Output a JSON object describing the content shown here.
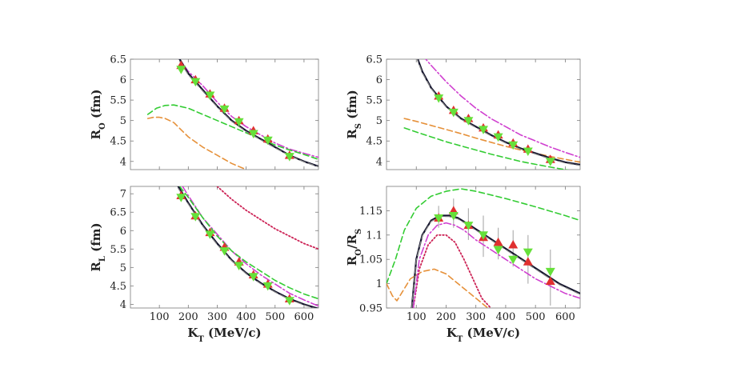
{
  "chart_data": [
    {
      "type": "line",
      "id": "ro",
      "title": "",
      "ylabel": "R",
      "ylabel_sub": "O",
      "ylabel_unit": " (fm)",
      "xlabel": "",
      "xlim": [
        0,
        650
      ],
      "ylim": [
        3.8,
        6.5
      ],
      "yticks": [
        "4",
        "4.5",
        "5",
        "5.5",
        "6",
        "6.5"
      ],
      "xticks": [],
      "series": [
        {
          "name": "dash-dot magenta",
          "color": "#d040d0",
          "style": "dashdot",
          "width": 1.6,
          "x": [
            160,
            200,
            250,
            300,
            350,
            400,
            450,
            500,
            550,
            600,
            650
          ],
          "y": [
            6.6,
            6.2,
            5.85,
            5.45,
            5.1,
            4.85,
            4.65,
            4.45,
            4.3,
            4.2,
            4.1
          ]
        },
        {
          "name": "dashed green",
          "color": "#33cc33",
          "style": "dashed",
          "width": 1.6,
          "x": [
            60,
            90,
            120,
            150,
            200,
            250,
            300,
            350,
            400,
            450,
            500,
            550,
            600,
            650
          ],
          "y": [
            5.15,
            5.3,
            5.37,
            5.38,
            5.3,
            5.15,
            5.0,
            4.85,
            4.7,
            4.55,
            4.4,
            4.28,
            4.17,
            4.05
          ]
        },
        {
          "name": "dashed orange",
          "color": "#e6913a",
          "style": "dashed",
          "width": 1.6,
          "x": [
            60,
            80,
            100,
            120,
            150,
            200,
            250,
            300,
            350,
            400
          ],
          "y": [
            5.05,
            5.08,
            5.08,
            5.05,
            4.95,
            4.6,
            4.35,
            4.15,
            3.95,
            3.8
          ]
        },
        {
          "name": "solid black",
          "color": "#15152e",
          "style": "solid",
          "width": 2.2,
          "x": [
            170,
            200,
            250,
            300,
            350,
            400,
            450,
            500,
            550,
            600,
            650
          ],
          "y": [
            6.5,
            6.15,
            5.75,
            5.35,
            5.0,
            4.75,
            4.55,
            4.35,
            4.15,
            4.0,
            3.88
          ]
        },
        {
          "name": "dashed gray",
          "color": "#888888",
          "style": "dashed",
          "width": 1.2,
          "x": [
            170,
            200,
            250,
            300,
            350,
            400,
            450,
            500,
            550,
            600,
            650
          ],
          "y": [
            6.45,
            6.12,
            5.72,
            5.33,
            4.98,
            4.73,
            4.53,
            4.33,
            4.14,
            3.99,
            3.87
          ]
        }
      ],
      "markers": [
        {
          "name": "red triangles",
          "color": "#e03030",
          "shape": "triangle-up",
          "x": [
            175,
            225,
            275,
            325,
            375,
            425,
            475,
            550
          ],
          "y": [
            6.35,
            6.0,
            5.65,
            5.3,
            5.0,
            4.75,
            4.55,
            4.15
          ]
        },
        {
          "name": "green triangles",
          "color": "#66e03a",
          "shape": "triangle-down",
          "x": [
            175,
            225,
            275,
            325,
            375,
            425,
            475,
            550
          ],
          "y": [
            6.25,
            5.95,
            5.62,
            5.28,
            4.97,
            4.68,
            4.52,
            4.12
          ]
        }
      ]
    },
    {
      "type": "line",
      "id": "rs",
      "title": "",
      "ylabel": "R",
      "ylabel_sub": "S",
      "ylabel_unit": " (fm)",
      "xlabel": "",
      "xlim": [
        0,
        650
      ],
      "ylim": [
        3.8,
        6.5
      ],
      "yticks": [
        "4",
        "4.5",
        "5",
        "5.5",
        "6",
        "6.5"
      ],
      "xticks": [],
      "series": [
        {
          "name": "dash-dot magenta",
          "color": "#d040d0",
          "style": "dashdot",
          "width": 1.6,
          "x": [
            120,
            150,
            200,
            250,
            300,
            350,
            400,
            450,
            500,
            550,
            600,
            650
          ],
          "y": [
            6.6,
            6.35,
            5.95,
            5.6,
            5.3,
            5.05,
            4.85,
            4.65,
            4.5,
            4.35,
            4.22,
            4.1
          ]
        },
        {
          "name": "dashed orange",
          "color": "#e6913a",
          "style": "dashed",
          "width": 1.6,
          "x": [
            60,
            100,
            150,
            200,
            250,
            300,
            350,
            400,
            450,
            500,
            550,
            600,
            650
          ],
          "y": [
            5.05,
            4.98,
            4.88,
            4.78,
            4.68,
            4.57,
            4.47,
            4.37,
            4.28,
            4.2,
            4.12,
            4.05,
            3.98
          ]
        },
        {
          "name": "dashed green",
          "color": "#33cc33",
          "style": "dashed",
          "width": 1.6,
          "x": [
            60,
            100,
            150,
            200,
            250,
            300,
            350,
            400,
            450,
            500,
            550,
            600,
            650
          ],
          "y": [
            4.82,
            4.72,
            4.6,
            4.48,
            4.38,
            4.28,
            4.18,
            4.09,
            4.0,
            3.93,
            3.86,
            3.8,
            3.74
          ]
        },
        {
          "name": "solid black",
          "color": "#15152e",
          "style": "solid",
          "width": 2.2,
          "x": [
            100,
            120,
            150,
            200,
            250,
            300,
            350,
            400,
            450,
            500,
            550,
            600,
            650
          ],
          "y": [
            6.6,
            6.2,
            5.8,
            5.35,
            5.05,
            4.85,
            4.65,
            4.47,
            4.32,
            4.2,
            4.08,
            3.98,
            3.92
          ]
        },
        {
          "name": "dashed gray",
          "color": "#888888",
          "style": "dashed",
          "width": 1.2,
          "x": [
            100,
            120,
            150,
            200,
            250,
            300,
            350,
            400,
            450,
            500,
            550,
            600,
            650
          ],
          "y": [
            6.55,
            6.17,
            5.78,
            5.33,
            5.03,
            4.83,
            4.63,
            4.45,
            4.3,
            4.18,
            4.06,
            3.96,
            3.9
          ]
        }
      ],
      "markers": [
        {
          "name": "red triangles",
          "color": "#e03030",
          "shape": "triangle-up",
          "x": [
            175,
            225,
            275,
            325,
            375,
            425,
            475,
            550
          ],
          "y": [
            5.6,
            5.25,
            5.05,
            4.82,
            4.65,
            4.45,
            4.3,
            4.05
          ]
        },
        {
          "name": "green triangles",
          "color": "#66e03a",
          "shape": "triangle-down",
          "x": [
            175,
            225,
            275,
            325,
            375,
            425,
            475,
            550
          ],
          "y": [
            5.55,
            5.2,
            5.0,
            4.78,
            4.6,
            4.4,
            4.25,
            4.0
          ]
        }
      ]
    },
    {
      "type": "line",
      "id": "rl",
      "title": "",
      "ylabel": "R",
      "ylabel_sub": "L",
      "ylabel_unit": " (fm)",
      "xlabel": "K",
      "xlabel_sub": "T",
      "xlabel_unit": " (MeV/c)",
      "xlim": [
        0,
        650
      ],
      "ylim": [
        3.9,
        7.2
      ],
      "yticks": [
        "4",
        "4.5",
        "5",
        "5.5",
        "6",
        "6.5",
        "7"
      ],
      "xticks": [
        "100",
        "200",
        "300",
        "400",
        "500",
        "600"
      ],
      "series": [
        {
          "name": "dotted crimson",
          "color": "#cc2255",
          "style": "dotted",
          "width": 1.8,
          "x": [
            300,
            350,
            400,
            450,
            500,
            550,
            600,
            650
          ],
          "y": [
            7.2,
            6.85,
            6.55,
            6.3,
            6.05,
            5.85,
            5.65,
            5.5
          ]
        },
        {
          "name": "dash-dot magenta",
          "color": "#d040d0",
          "style": "dashdot",
          "width": 1.6,
          "x": [
            180,
            200,
            250,
            300,
            350,
            400,
            450,
            500,
            550,
            600,
            650
          ],
          "y": [
            7.2,
            6.95,
            6.35,
            5.9,
            5.45,
            5.1,
            4.8,
            4.55,
            4.3,
            4.12,
            3.95
          ]
        },
        {
          "name": "dashed green",
          "color": "#33cc33",
          "style": "dashed",
          "width": 1.6,
          "x": [
            170,
            200,
            250,
            300,
            350,
            400,
            450,
            500,
            550,
            600,
            650
          ],
          "y": [
            7.2,
            6.9,
            6.35,
            5.85,
            5.45,
            5.15,
            4.9,
            4.65,
            4.45,
            4.28,
            4.15
          ]
        },
        {
          "name": "solid black",
          "color": "#15152e",
          "style": "solid",
          "width": 2.2,
          "x": [
            165,
            200,
            250,
            300,
            350,
            400,
            450,
            500,
            550,
            600,
            650
          ],
          "y": [
            7.2,
            6.75,
            6.15,
            5.65,
            5.2,
            4.85,
            4.58,
            4.35,
            4.15,
            4.0,
            3.88
          ]
        },
        {
          "name": "dashed gray",
          "color": "#888888",
          "style": "dashed",
          "width": 1.2,
          "x": [
            165,
            200,
            250,
            300,
            350,
            400,
            450,
            500,
            550,
            600,
            650
          ],
          "y": [
            7.15,
            6.72,
            6.12,
            5.62,
            5.18,
            4.83,
            4.56,
            4.33,
            4.13,
            3.98,
            3.86
          ]
        }
      ],
      "markers": [
        {
          "name": "red triangles",
          "color": "#e03030",
          "shape": "triangle-up",
          "x": [
            175,
            225,
            275,
            325,
            375,
            425,
            475,
            550
          ],
          "y": [
            6.95,
            6.4,
            5.95,
            5.55,
            5.15,
            4.8,
            4.55,
            4.15
          ]
        },
        {
          "name": "green triangles",
          "color": "#66e03a",
          "shape": "triangle-down",
          "x": [
            175,
            225,
            275,
            325,
            375,
            425,
            475,
            550
          ],
          "y": [
            6.9,
            6.38,
            5.9,
            5.45,
            5.05,
            4.75,
            4.5,
            4.1
          ]
        }
      ]
    },
    {
      "type": "line",
      "id": "ratio",
      "title": "",
      "ylabel": "R",
      "ylabel_sub": "O",
      "ylabel_mid": "/R",
      "ylabel_sub2": "S",
      "xlabel": "K",
      "xlabel_sub": "T",
      "xlabel_unit": " (MeV/c)",
      "xlim": [
        0,
        650
      ],
      "ylim": [
        0.95,
        1.2
      ],
      "yticks": [
        "0.95",
        "1",
        "1.05",
        "1.1",
        "1.15"
      ],
      "xticks": [
        "100",
        "200",
        "300",
        "400",
        "500",
        "600"
      ],
      "series": [
        {
          "name": "dashed green",
          "color": "#33cc33",
          "style": "dashed",
          "width": 1.6,
          "x": [
            0,
            30,
            60,
            100,
            150,
            200,
            250,
            300,
            400,
            500,
            600,
            650
          ],
          "y": [
            1.0,
            1.05,
            1.11,
            1.155,
            1.18,
            1.19,
            1.195,
            1.19,
            1.175,
            1.158,
            1.14,
            1.13
          ]
        },
        {
          "name": "dashed orange",
          "color": "#e6913a",
          "style": "dashed",
          "width": 1.6,
          "x": [
            0,
            20,
            35,
            50,
            80,
            120,
            160,
            200,
            250,
            300,
            340
          ],
          "y": [
            1.0,
            0.975,
            0.965,
            0.98,
            1.01,
            1.025,
            1.03,
            1.02,
            0.995,
            0.97,
            0.95
          ]
        },
        {
          "name": "dotted crimson",
          "color": "#cc2255",
          "style": "dotted",
          "width": 1.8,
          "x": [
            90,
            110,
            140,
            170,
            200,
            230,
            260,
            290,
            320,
            350
          ],
          "y": [
            0.95,
            1.03,
            1.08,
            1.1,
            1.1,
            1.085,
            1.05,
            1.01,
            0.97,
            0.95
          ]
        },
        {
          "name": "dash-dot magenta",
          "color": "#d040d0",
          "style": "dashdot",
          "width": 1.6,
          "x": [
            90,
            110,
            140,
            170,
            200,
            230,
            260,
            300,
            350,
            400,
            450,
            500,
            550,
            600,
            650
          ],
          "y": [
            0.95,
            1.05,
            1.1,
            1.12,
            1.125,
            1.12,
            1.11,
            1.09,
            1.07,
            1.05,
            1.03,
            1.01,
            0.995,
            0.98,
            0.97
          ]
        },
        {
          "name": "solid black",
          "color": "#15152e",
          "style": "solid",
          "width": 2.2,
          "x": [
            85,
            100,
            120,
            150,
            180,
            210,
            240,
            280,
            330,
            380,
            430,
            480,
            530,
            580,
            650
          ],
          "y": [
            0.95,
            1.05,
            1.1,
            1.13,
            1.14,
            1.14,
            1.135,
            1.12,
            1.1,
            1.08,
            1.06,
            1.04,
            1.02,
            1.0,
            0.98
          ]
        },
        {
          "name": "dashed gray",
          "color": "#888888",
          "style": "dashed",
          "width": 1.2,
          "x": [
            85,
            100,
            120,
            150,
            180,
            210,
            240,
            280,
            330,
            380,
            430,
            480,
            530,
            580,
            650
          ],
          "y": [
            0.95,
            1.048,
            1.098,
            1.128,
            1.138,
            1.138,
            1.133,
            1.118,
            1.098,
            1.078,
            1.058,
            1.038,
            1.018,
            0.998,
            0.978
          ]
        }
      ],
      "markers": [
        {
          "name": "red triangles",
          "color": "#e03030",
          "shape": "triangle-up",
          "x": [
            175,
            225,
            275,
            325,
            375,
            425,
            475,
            550
          ],
          "y": [
            1.135,
            1.15,
            1.12,
            1.095,
            1.085,
            1.08,
            1.045,
            1.005
          ]
        },
        {
          "name": "green triangles",
          "color": "#66e03a",
          "shape": "triangle-down",
          "x": [
            175,
            225,
            275,
            325,
            375,
            425,
            475,
            550
          ],
          "y": [
            1.135,
            1.14,
            1.12,
            1.1,
            1.07,
            1.05,
            1.065,
            1.025
          ]
        }
      ],
      "error_bars": {
        "color": "#b0b0b0",
        "x": [
          175,
          225,
          275,
          325,
          375,
          425,
          475,
          550
        ],
        "low": [
          1.115,
          1.115,
          1.09,
          1.055,
          1.05,
          1.035,
          1.0,
          0.955
        ],
        "high": [
          1.16,
          1.175,
          1.155,
          1.14,
          1.115,
          1.11,
          1.1,
          1.07
        ]
      }
    }
  ]
}
